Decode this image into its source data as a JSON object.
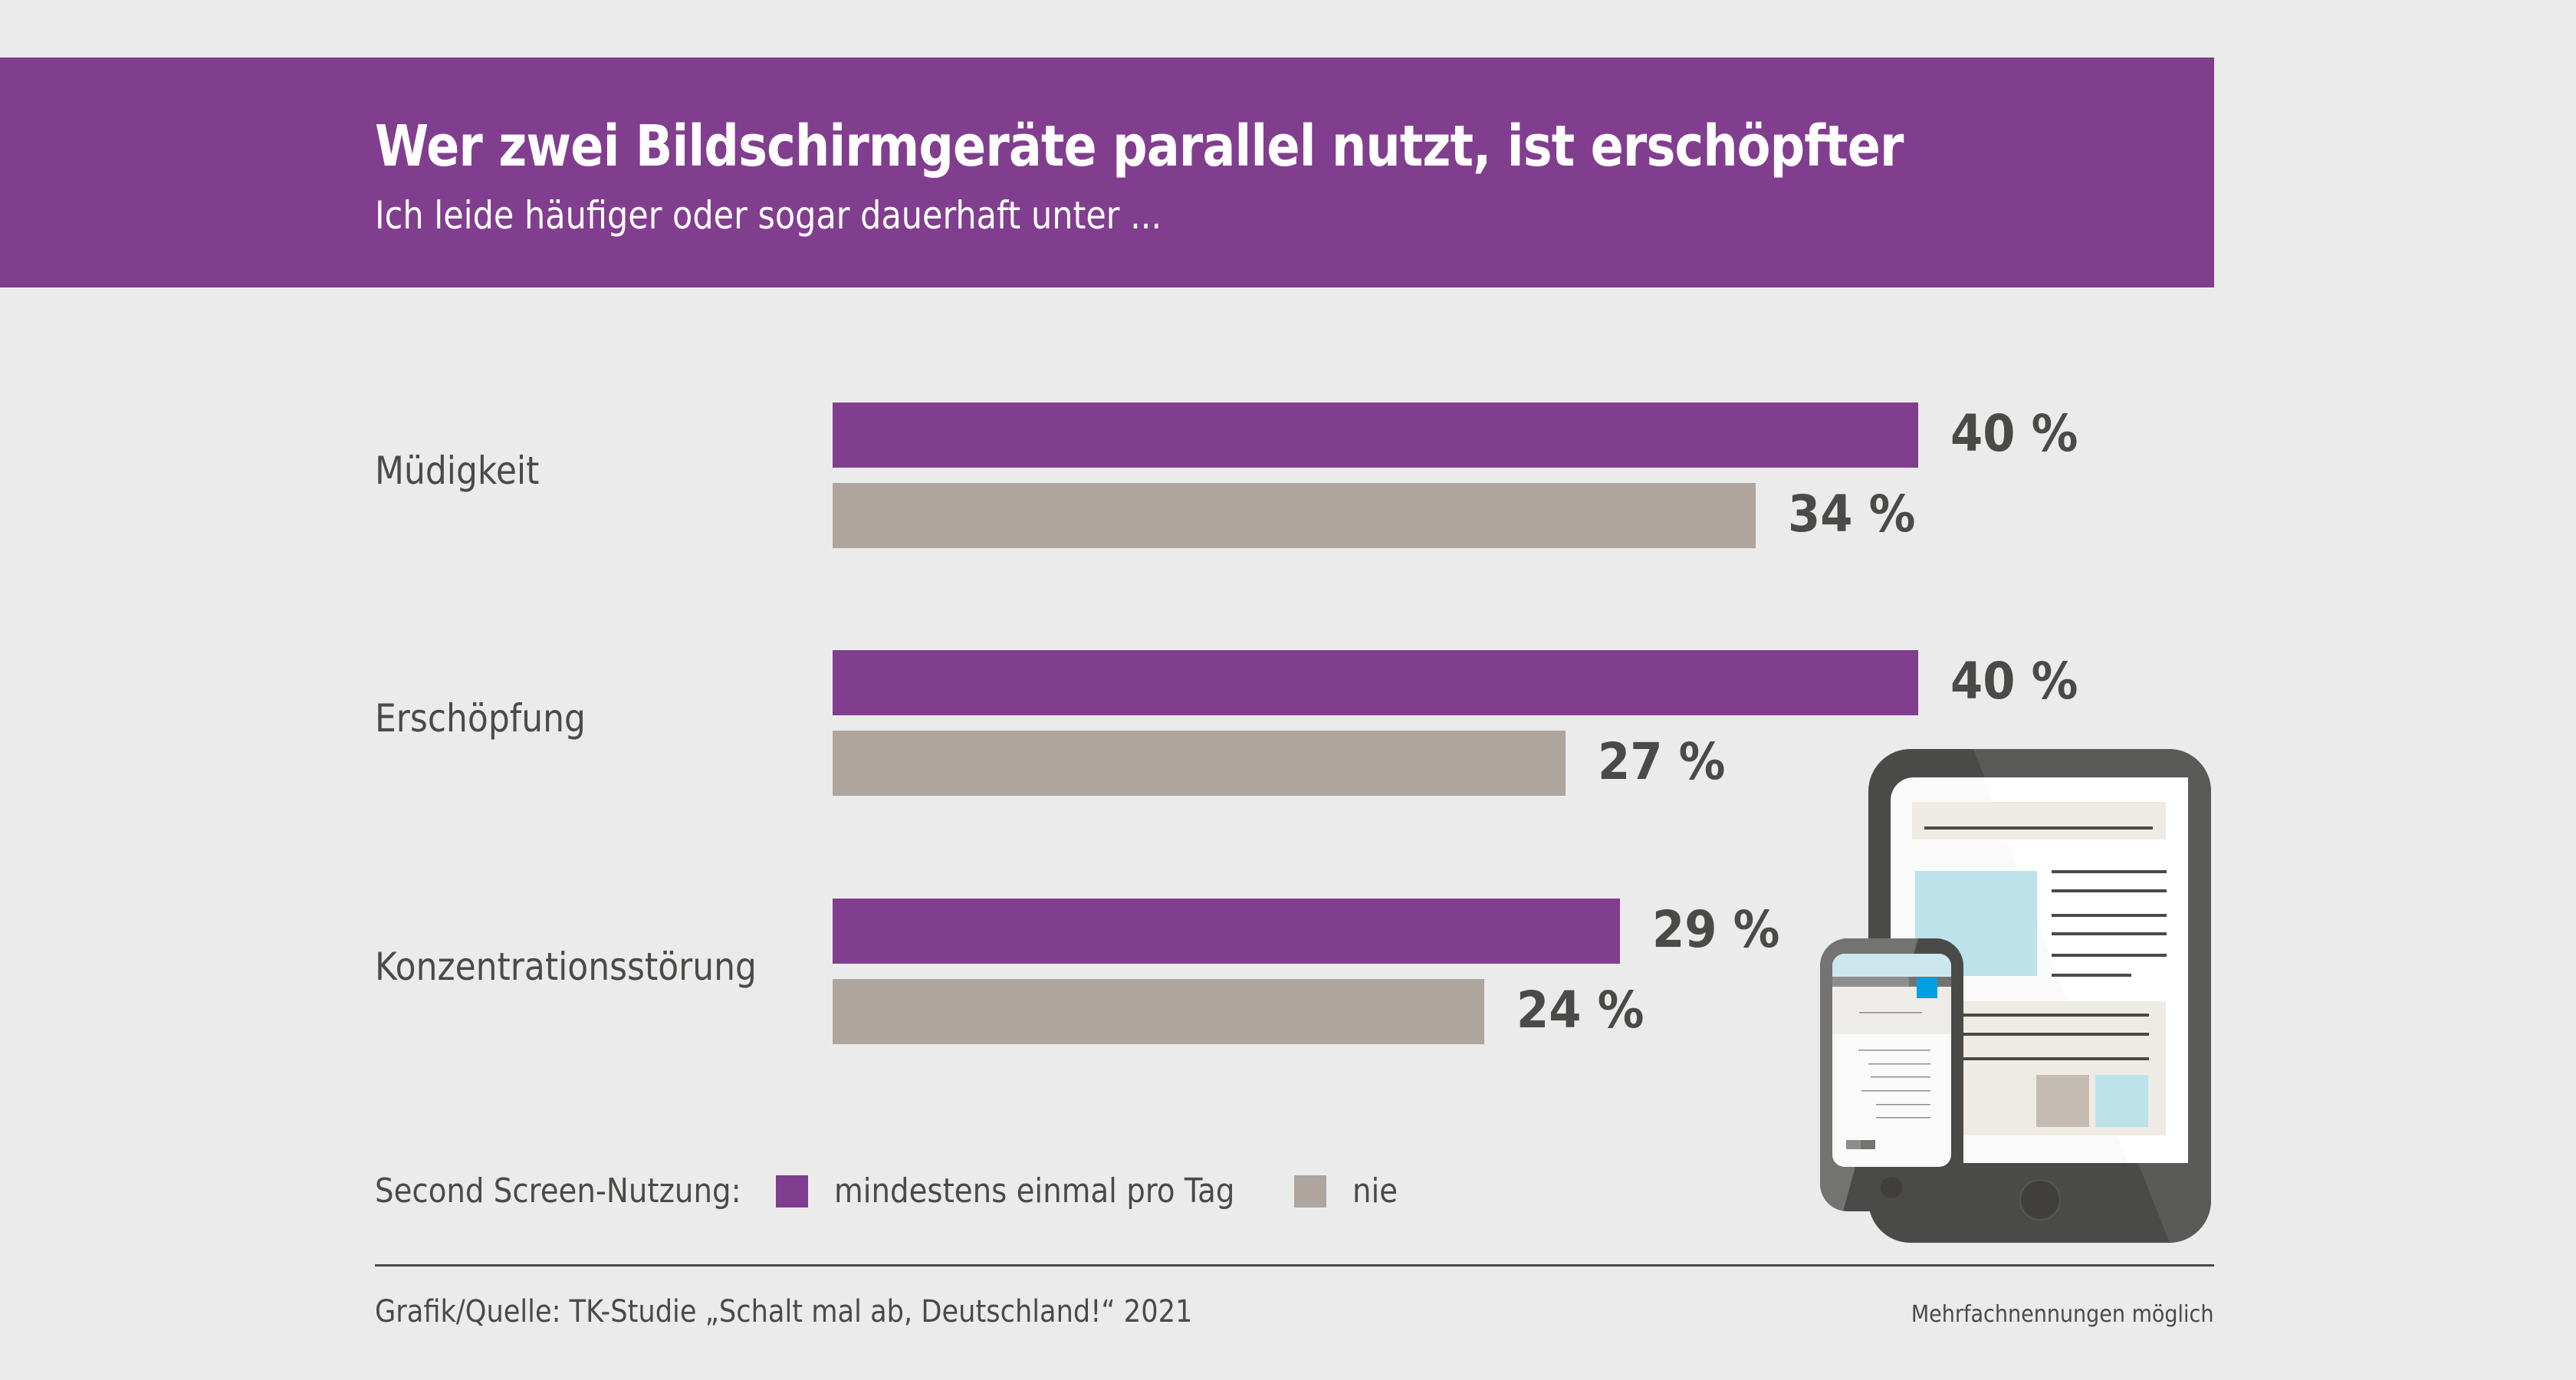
{
  "header": {
    "title": "Wer zwei Bildschirmgeräte parallel nutzt, ist erschöpfter",
    "subtitle": "Ich leide häufiger oder sogar dauerhaft unter ..."
  },
  "colors": {
    "brand": "#823e8e",
    "series_daily": "#823e8e",
    "series_never": "#aea59f",
    "background": "#ebebeb",
    "text": "#4a4a49"
  },
  "chart_data": {
    "type": "bar",
    "orientation": "horizontal",
    "title": "Wer zwei Bildschirmgeräte parallel nutzt, ist erschöpfter",
    "subtitle": "Ich leide häufiger oder sogar dauerhaft unter ...",
    "categories": [
      "Müdigkeit",
      "Erschöpfung",
      "Konzentrationsstörung"
    ],
    "series": [
      {
        "name": "mindestens einmal pro Tag",
        "values": [
          40,
          40,
          29
        ],
        "labels": [
          "40 %",
          "40 %",
          "29 %"
        ]
      },
      {
        "name": "nie",
        "values": [
          34,
          27,
          24
        ],
        "labels": [
          "34 %",
          "27 %",
          "24 %"
        ]
      }
    ],
    "unit": "%",
    "xlim": [
      0,
      40
    ],
    "xlabel": "",
    "ylabel": "",
    "grid": false,
    "legend_title": "Second Screen-Nutzung:",
    "legend_position": "bottom-left"
  },
  "legend": {
    "title": "Second Screen-Nutzung:",
    "items": [
      {
        "label": "mindestens einmal pro Tag"
      },
      {
        "label": "nie"
      }
    ]
  },
  "footer": {
    "source": "Grafik/Quelle: TK-Studie „Schalt mal ab, Deutschland!“ 2021",
    "note": "Mehrfachnennungen möglich"
  },
  "illustration": {
    "icon": "tablet-and-smartphone-icon"
  }
}
